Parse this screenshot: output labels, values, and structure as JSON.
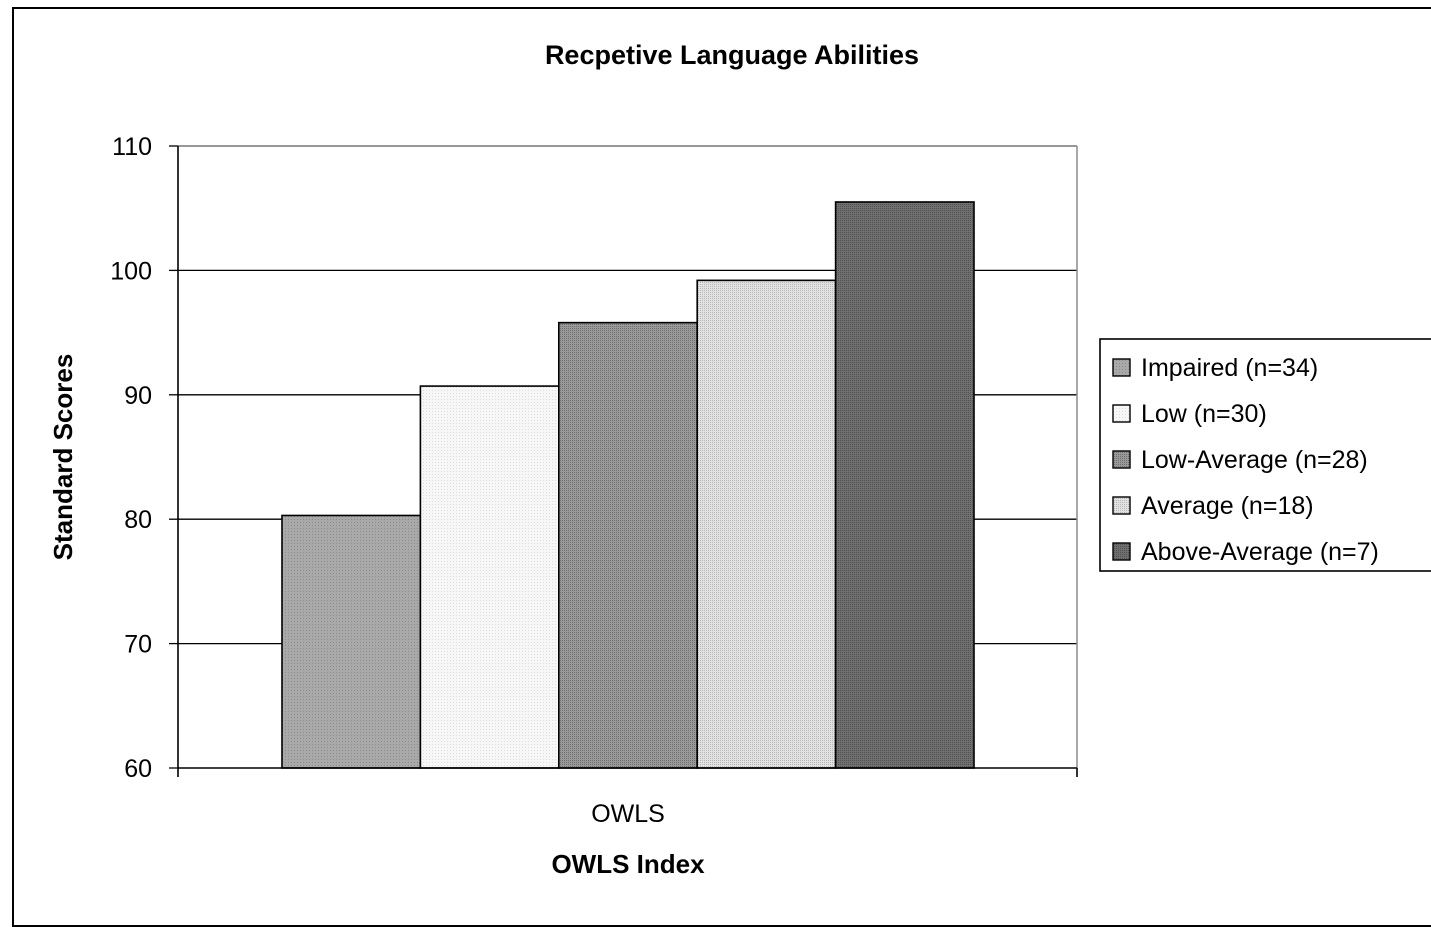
{
  "chart_data": {
    "type": "bar",
    "title": "Recpetive Language Abilities",
    "xlabel": "OWLS Index",
    "ylabel": "Standard Scores",
    "categories": [
      "OWLS"
    ],
    "ylim": [
      60,
      110
    ],
    "yticks": [
      60,
      70,
      80,
      90,
      100,
      110
    ],
    "grid": true,
    "legend_position": "right",
    "series": [
      {
        "name": "Impaired (n=34)",
        "values": [
          80.3
        ],
        "color": "#a6a6a6"
      },
      {
        "name": "Low (n=30)",
        "values": [
          90.7
        ],
        "color": "#f3f3f3"
      },
      {
        "name": "Low-Average (n=28)",
        "values": [
          95.8
        ],
        "color": "#8f8f8f"
      },
      {
        "name": "Average (n=18)",
        "values": [
          99.2
        ],
        "color": "#d6d6d6"
      },
      {
        "name": "Above-Average (n=7)",
        "values": [
          105.5
        ],
        "color": "#6a6a6a"
      }
    ]
  }
}
